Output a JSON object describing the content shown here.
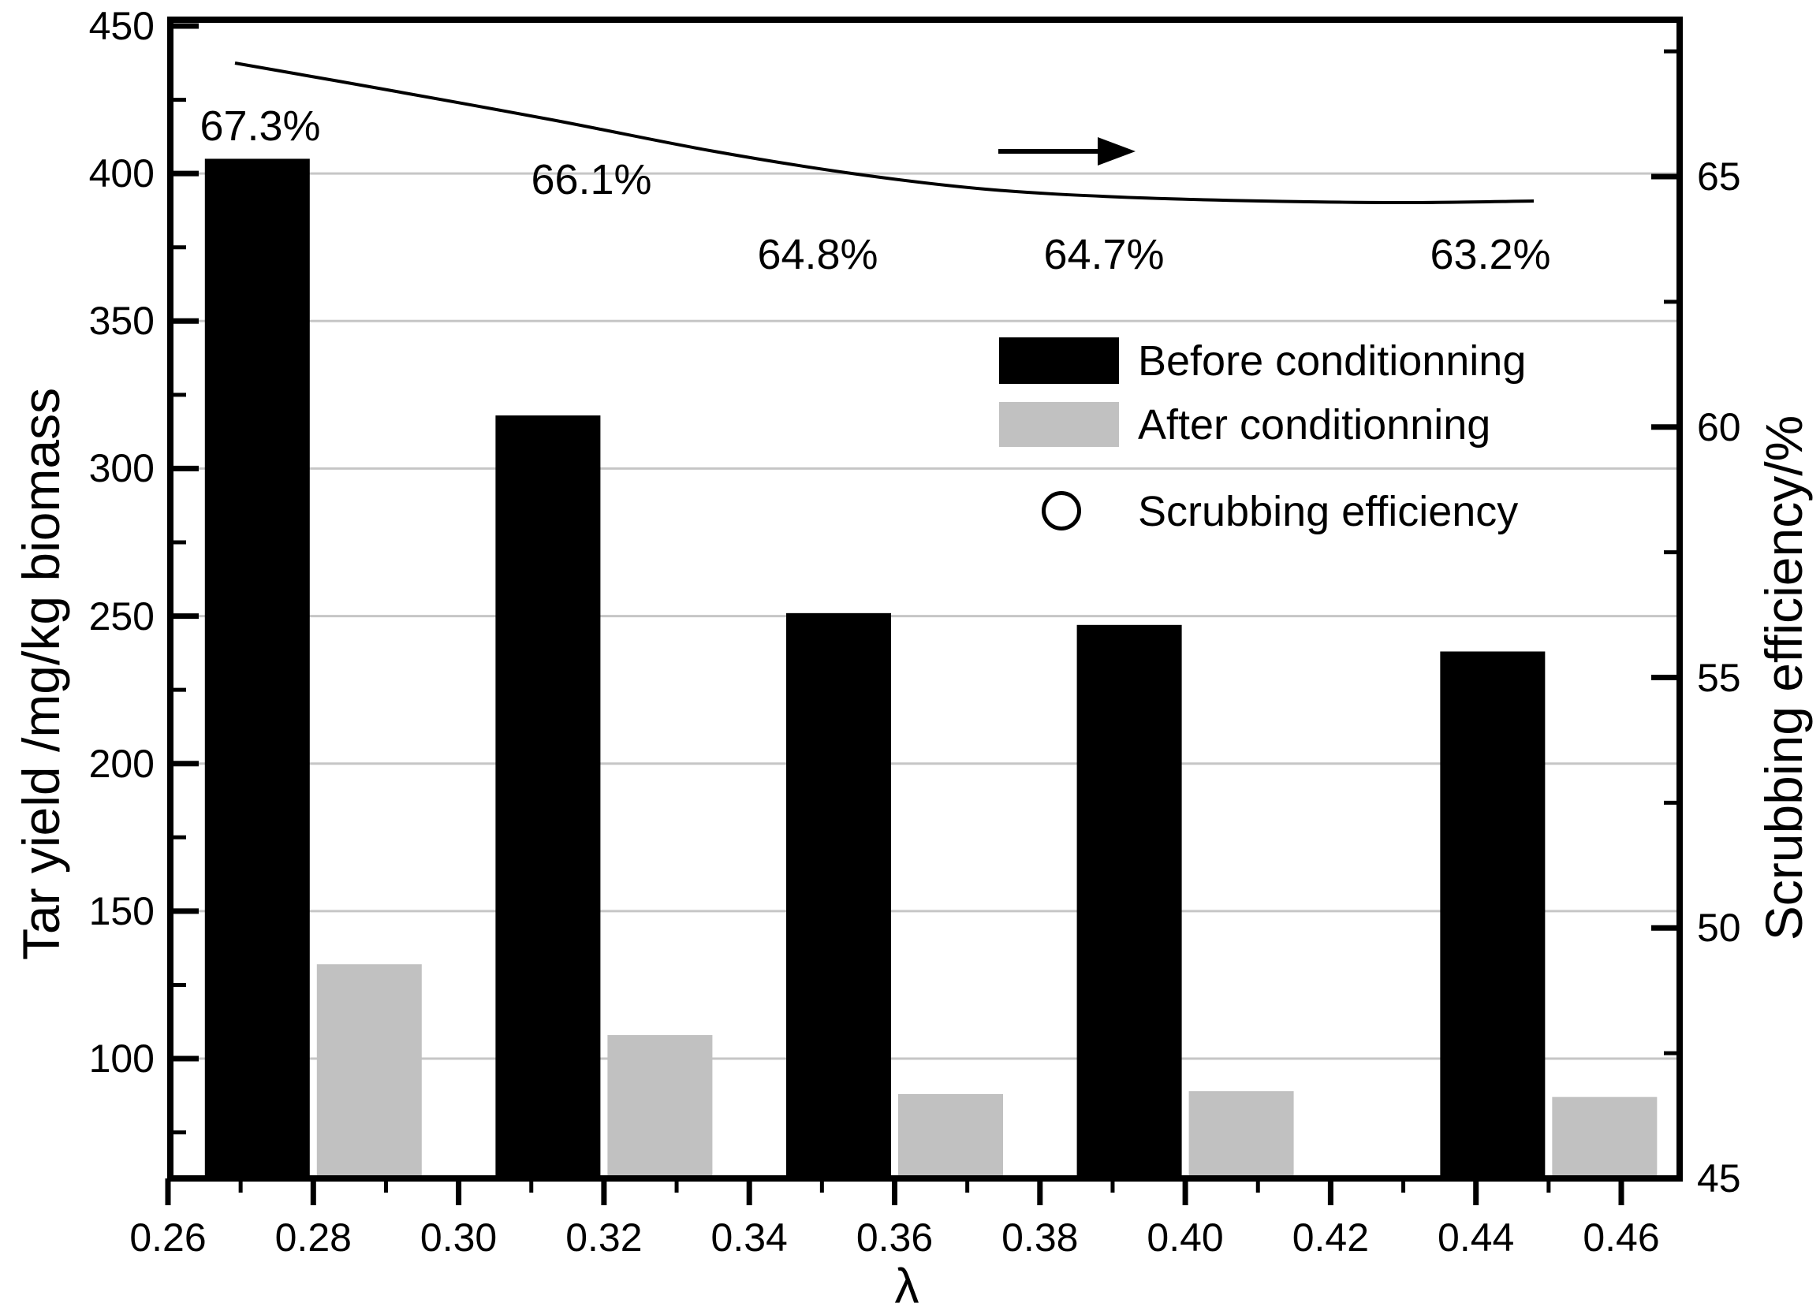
{
  "chart_data": {
    "type": "bar+line",
    "xlabel": "λ",
    "ylabel_left": "Tar yield /mg/kg biomass",
    "ylabel_right": "Scrubbing efficiency/%",
    "categories": [
      0.28,
      0.32,
      0.36,
      0.4,
      0.45
    ],
    "series": [
      {
        "name": "Before conditionning",
        "color": "#000000",
        "axis": "left",
        "values": [
          405,
          318,
          251,
          247,
          238
        ]
      },
      {
        "name": "After conditionning",
        "color": "#c1c1c1",
        "axis": "left",
        "values": [
          132,
          108,
          88,
          89,
          87
        ]
      }
    ],
    "line": {
      "name": "Scrubbing efficiency",
      "axis": "right",
      "marker": "circle",
      "values": [
        67.3,
        66.1,
        64.8,
        64.7,
        63.2
      ],
      "labels": [
        "67.3%",
        "66.1%",
        "64.8%",
        "64.7%",
        "63.2%"
      ]
    },
    "x_ticks": [
      "0.26",
      "0.28",
      "0.30",
      "0.32",
      "0.34",
      "0.36",
      "0.38",
      "0.40",
      "0.42",
      "0.44",
      "0.46"
    ],
    "x_tick_values": [
      0.26,
      0.28,
      0.3,
      0.32,
      0.34,
      0.36,
      0.38,
      0.4,
      0.42,
      0.44,
      0.46
    ],
    "x_minor_tick_values": [
      0.27,
      0.29,
      0.31,
      0.33,
      0.35,
      0.37,
      0.39,
      0.41,
      0.43,
      0.45
    ],
    "y_left_ticks": [
      450,
      400,
      350,
      300,
      250,
      200,
      150,
      100
    ],
    "y_left_minor_ticks": [
      425,
      375,
      325,
      275,
      225,
      175,
      125,
      75
    ],
    "y_right_ticks": [
      65,
      60,
      55,
      50,
      45
    ],
    "y_right_minor_ticks": [
      67.5,
      62.5,
      57.5,
      52.5,
      47.5
    ],
    "xlim": [
      0.26,
      0.468
    ],
    "ylim_left": [
      59,
      452
    ],
    "ylim_right": [
      45,
      68.1
    ],
    "grid": "horizontal-left-majors",
    "gridline_color": "#c6c6c6",
    "axis_color": "#000000",
    "background": "#ffffff"
  },
  "legend": {
    "items": [
      {
        "swatch": "black-rect",
        "label": "Before conditionning"
      },
      {
        "swatch": "gray-rect",
        "label": "After conditionning"
      },
      {
        "swatch": "open-circle",
        "label": "Scrubbing efficiency"
      }
    ]
  },
  "annotations": {
    "arrow": "right-arrow"
  }
}
